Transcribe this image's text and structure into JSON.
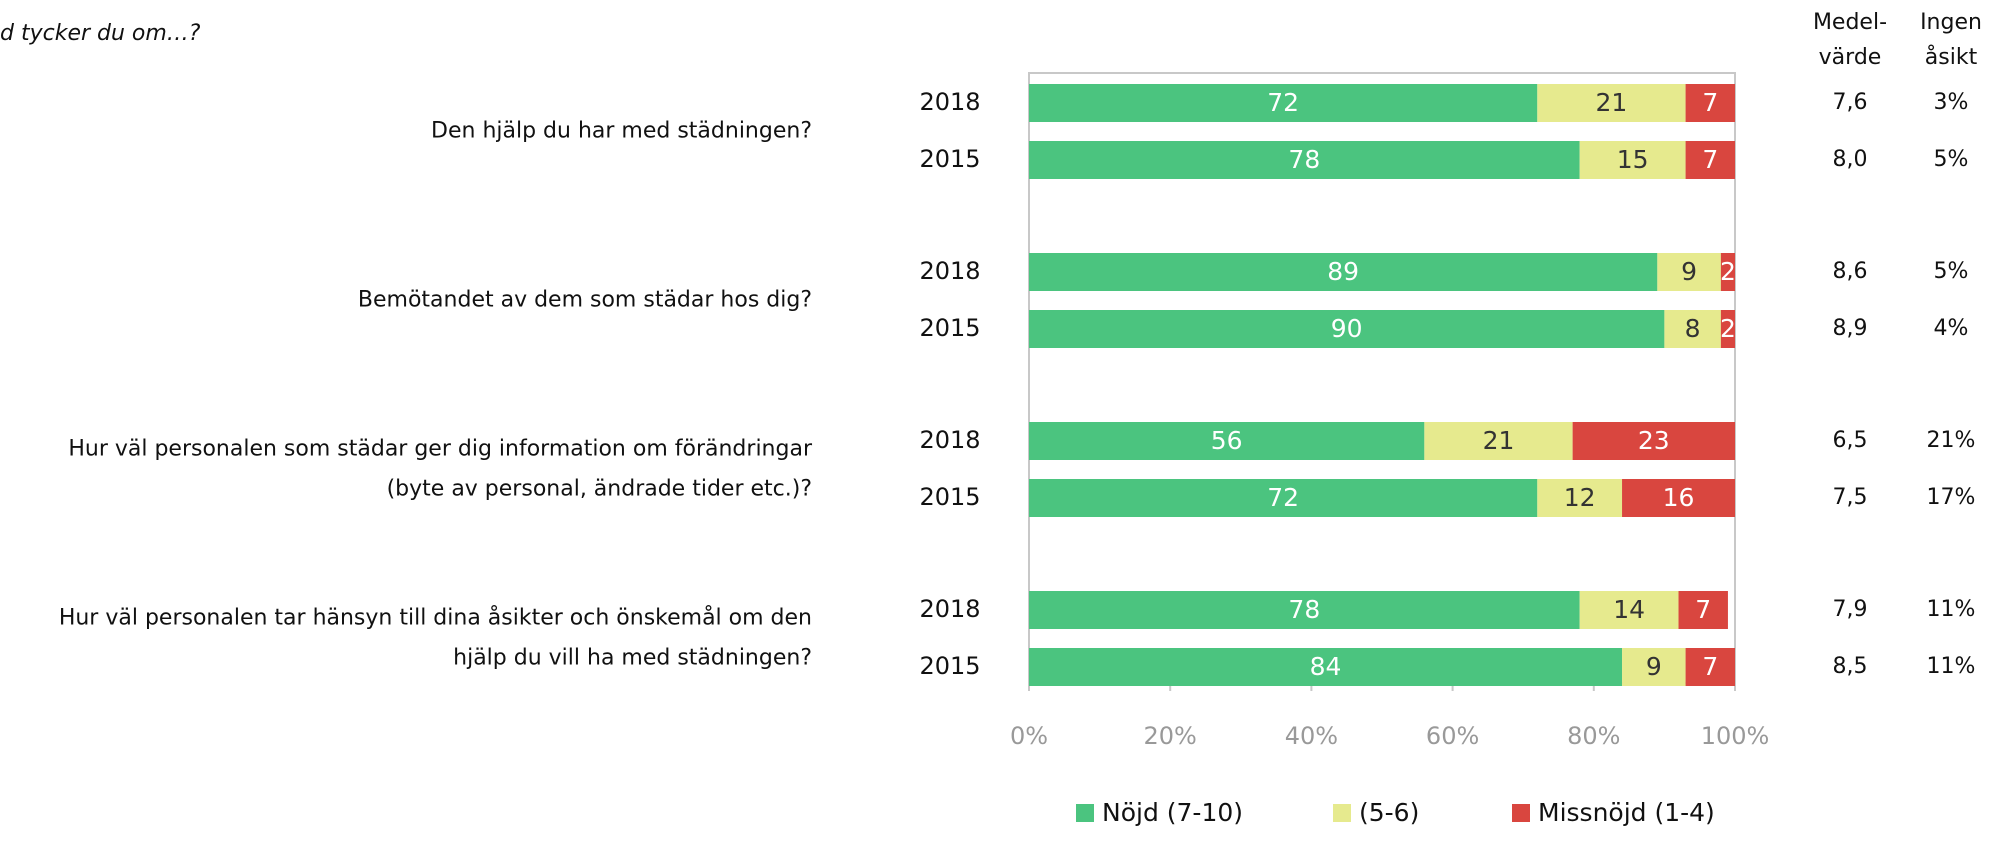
{
  "chart_data": {
    "type": "bar",
    "orientation": "horizontal",
    "stacked": true,
    "title": "d tycker du om…?",
    "groups": [
      [
        "Den hjälp du har med städningen?"
      ],
      [
        "Bemötandet av dem som städar hos dig?"
      ],
      [
        "Hur väl personalen som städar ger dig information om förändringar",
        "(byte av personal, ändrade tider etc.)?"
      ],
      [
        "Hur väl personalen tar hänsyn till dina åsikter och önskemål om den",
        "hjälp du vill ha med städningen?"
      ]
    ],
    "categories": [
      "2018",
      "2015",
      "2018",
      "2015",
      "2018",
      "2015",
      "2018",
      "2015"
    ],
    "series": [
      {
        "name": "Nöjd (7-10)",
        "color": "#4bc47f",
        "values": [
          72,
          78,
          89,
          90,
          56,
          72,
          78,
          84
        ]
      },
      {
        "name": "(5-6)",
        "color": "#e6ea8e",
        "values": [
          21,
          15,
          9,
          8,
          21,
          12,
          14,
          9
        ]
      },
      {
        "name": "Missnöjd (1-4)",
        "color": "#d9463f",
        "values": [
          7,
          7,
          2,
          2,
          23,
          16,
          7,
          7
        ]
      }
    ],
    "xlim": [
      0,
      100
    ],
    "xticks": [
      {
        "value": 0,
        "label": "0%"
      },
      {
        "value": 20,
        "label": "20%"
      },
      {
        "value": 40,
        "label": "40%"
      },
      {
        "value": 60,
        "label": "60%"
      },
      {
        "value": 80,
        "label": "80%"
      },
      {
        "value": 100,
        "label": "100%"
      }
    ],
    "columns": [
      {
        "header": [
          "Medel-",
          "värde"
        ],
        "values": [
          7.6,
          8.0,
          8.6,
          8.9,
          6.5,
          7.5,
          7.9,
          8.5
        ],
        "value_labels": [
          "7,6",
          "8,0",
          "8,6",
          "8,9",
          "6,5",
          "7,5",
          "7,9",
          "8,5"
        ]
      },
      {
        "header": [
          "Ingen",
          "åsikt"
        ],
        "values": [
          3,
          5,
          5,
          4,
          21,
          17,
          11,
          11
        ],
        "value_labels": [
          "3%",
          "5%",
          "5%",
          "4%",
          "21%",
          "17%",
          "11%",
          "11%"
        ]
      }
    ]
  }
}
